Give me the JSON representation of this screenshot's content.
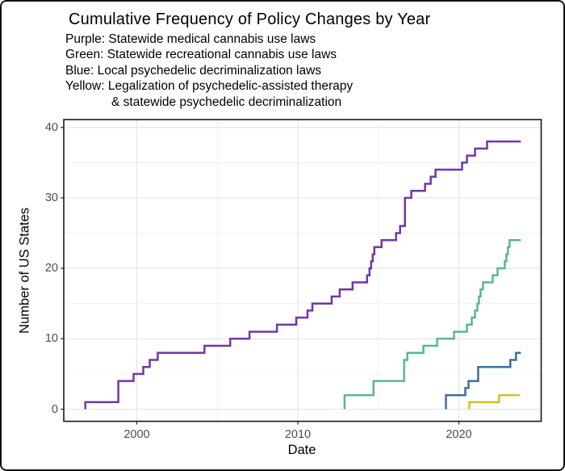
{
  "figure": {
    "title": "Cumulative Frequency of Policy Changes by Year",
    "subtitle_lines": [
      "Purple: Statewide medical cannabis use laws",
      "Green: Statewide recreational cannabis use laws",
      "Blue: Local psychedelic decriminalization laws",
      "Yellow: Legalization of psychedelic-assisted therapy",
      "& statewide psychedelic decriminalization"
    ]
  },
  "axes": {
    "x": {
      "label": "Date",
      "tick_labels": [
        "2000",
        "2010",
        "2020"
      ],
      "tick_years": [
        2000,
        2010,
        2020
      ],
      "minor_years": [
        2005,
        2015,
        2025
      ],
      "range": [
        1995.45,
        2025.15
      ]
    },
    "y": {
      "label": "Number of US States",
      "tick_labels": [
        "0",
        "10",
        "20",
        "30",
        "40"
      ],
      "tick_values": [
        0,
        10,
        20,
        30,
        40
      ],
      "minor_values": [
        5,
        15,
        25,
        35
      ],
      "range": [
        -1.7,
        41.8
      ]
    }
  },
  "chart_data": {
    "type": "line",
    "subtype": "cumulative-step",
    "title": "Cumulative Frequency of Policy Changes by Year",
    "xlabel": "Date",
    "ylabel": "Number of US States",
    "grid": true,
    "legend_position": "in-subtitle",
    "series": [
      {
        "name": "statewide-medical-cannabis",
        "legend_color_word": "Purple",
        "label": "Statewide medical cannabis use laws",
        "color": "#7137A8",
        "start_value": 0,
        "steps": [
          [
            1996.8,
            1
          ],
          [
            1998.85,
            4
          ],
          [
            1999.8,
            5
          ],
          [
            2000.4,
            6
          ],
          [
            2000.8,
            7
          ],
          [
            2001.3,
            8
          ],
          [
            2004.2,
            9
          ],
          [
            2005.8,
            10
          ],
          [
            2007.0,
            11
          ],
          [
            2008.7,
            12
          ],
          [
            2009.9,
            13
          ],
          [
            2010.6,
            14
          ],
          [
            2010.9,
            15
          ],
          [
            2012.1,
            16
          ],
          [
            2012.6,
            17
          ],
          [
            2013.4,
            18
          ],
          [
            2014.3,
            19
          ],
          [
            2014.45,
            20
          ],
          [
            2014.55,
            21
          ],
          [
            2014.65,
            22
          ],
          [
            2014.75,
            23
          ],
          [
            2015.2,
            24
          ],
          [
            2016.1,
            25
          ],
          [
            2016.35,
            26
          ],
          [
            2016.65,
            30
          ],
          [
            2017.05,
            31
          ],
          [
            2017.9,
            32
          ],
          [
            2018.25,
            33
          ],
          [
            2018.55,
            34
          ],
          [
            2020.2,
            35
          ],
          [
            2020.5,
            36
          ],
          [
            2021.0,
            37
          ],
          [
            2021.75,
            38
          ]
        ],
        "end_year": 2023.85,
        "final_value": 38
      },
      {
        "name": "statewide-recreational-cannabis",
        "legend_color_word": "Green",
        "label": "Statewide recreational cannabis use laws",
        "color": "#5CB690",
        "start_value": 0,
        "steps": [
          [
            2012.9,
            2
          ],
          [
            2014.7,
            4
          ],
          [
            2016.6,
            7
          ],
          [
            2016.8,
            8
          ],
          [
            2017.8,
            9
          ],
          [
            2018.65,
            10
          ],
          [
            2019.7,
            11
          ],
          [
            2020.5,
            12
          ],
          [
            2020.8,
            13
          ],
          [
            2021.0,
            14
          ],
          [
            2021.15,
            15
          ],
          [
            2021.25,
            16
          ],
          [
            2021.35,
            17
          ],
          [
            2021.5,
            18
          ],
          [
            2022.1,
            19
          ],
          [
            2022.4,
            20
          ],
          [
            2022.85,
            21
          ],
          [
            2022.95,
            22
          ],
          [
            2023.05,
            23
          ],
          [
            2023.15,
            24
          ]
        ],
        "end_year": 2023.85,
        "final_value": 24
      },
      {
        "name": "local-psychedelic-decriminalization",
        "legend_color_word": "Blue",
        "label": "Local psychedelic decriminalization laws",
        "color": "#3F6D9E",
        "start_value": 0,
        "steps": [
          [
            2019.2,
            2
          ],
          [
            2020.4,
            3
          ],
          [
            2020.6,
            4
          ],
          [
            2021.2,
            6
          ],
          [
            2023.2,
            7
          ],
          [
            2023.55,
            8
          ]
        ],
        "end_year": 2023.85,
        "final_value": 8
      },
      {
        "name": "psychedelic-therapy-and-statewide-decriminalization",
        "legend_color_word": "Yellow",
        "label": "Legalization of psychedelic-assisted therapy & statewide psychedelic decriminalization",
        "color": "#D6BE2A",
        "start_value": 0,
        "steps": [
          [
            2020.65,
            1
          ],
          [
            2022.5,
            2
          ]
        ],
        "end_year": 2023.8,
        "final_value": 2
      }
    ]
  },
  "style_colors": {
    "background": "#ffffff",
    "panel_border": "#1a1a1a",
    "grid_major": "#e4e4e4",
    "grid_minor": "#efefef",
    "tick_text": "#4d4d4d",
    "tick_mark": "#333333",
    "text": "#000000"
  }
}
